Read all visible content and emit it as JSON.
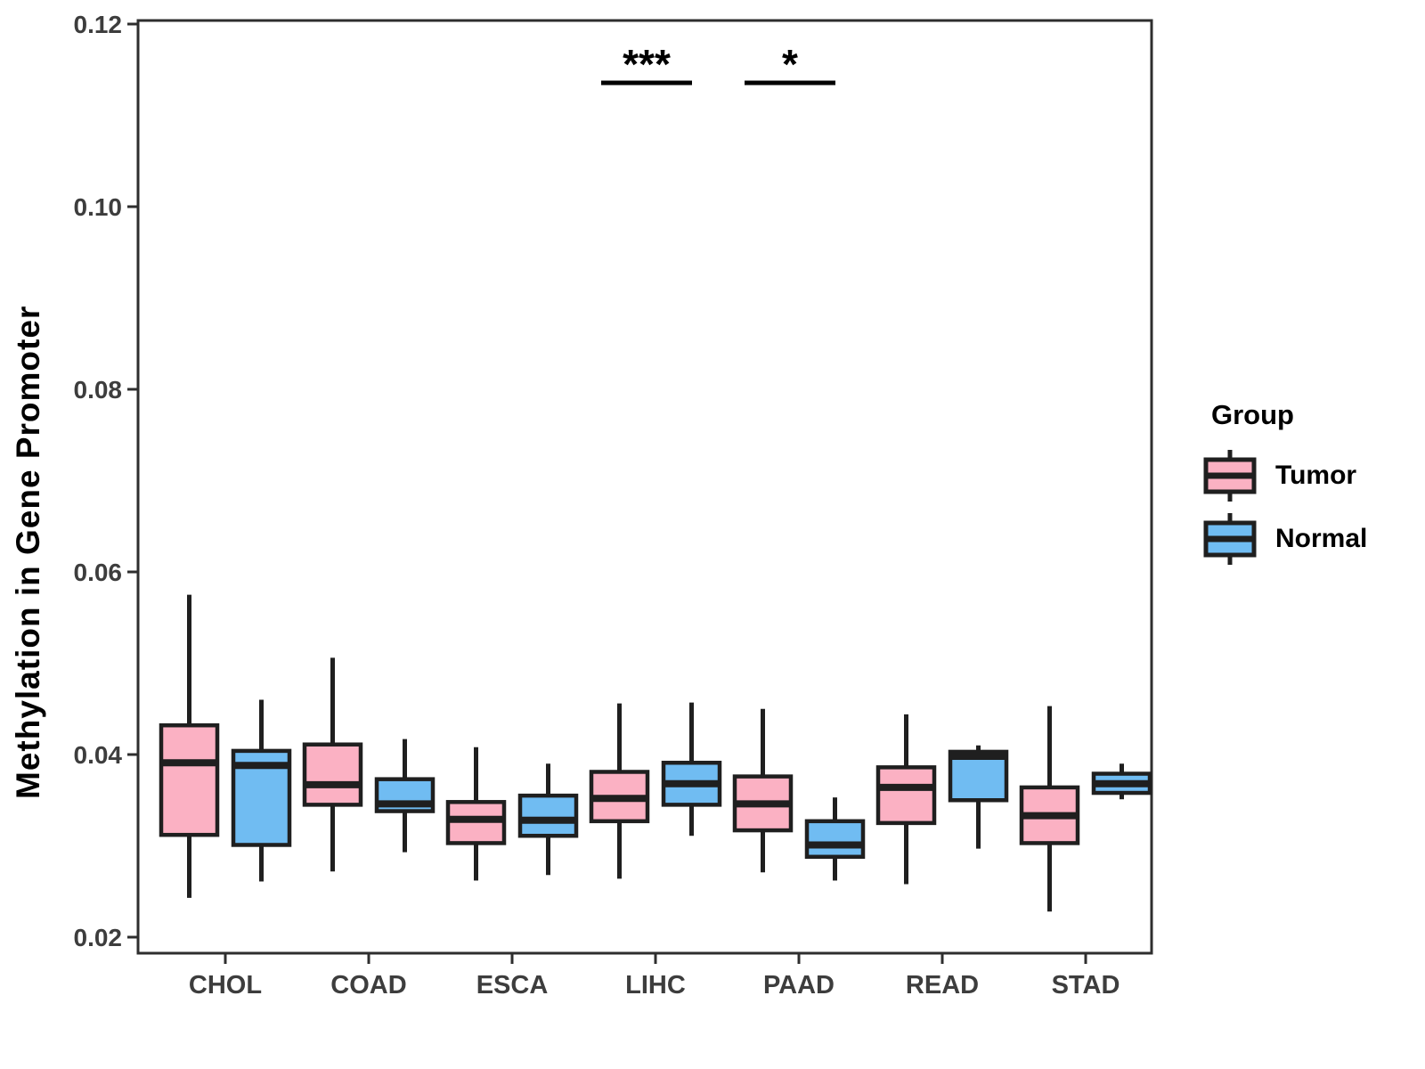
{
  "figure": {
    "background": "#FFFFFF"
  },
  "legend": {
    "title": "Group",
    "items": [
      {
        "label": "Tumor",
        "color": "#FBB1C3"
      },
      {
        "label": "Normal",
        "color": "#70BCF2"
      }
    ]
  },
  "chart_data": {
    "type": "boxplot",
    "title": "",
    "xlabel": "",
    "ylabel": "Methylation in Gene Promoter",
    "categories": [
      "CHOL",
      "COAD",
      "ESCA",
      "LIHC",
      "PAAD",
      "READ",
      "STAD"
    ],
    "groups": [
      "Tumor",
      "Normal"
    ],
    "colors": {
      "Tumor": "#FBB1C3",
      "Normal": "#70BCF2"
    },
    "stroke_color": "#1F1F1F",
    "axis_text_color": "#3D3D3D",
    "ylim": [
      0.02,
      0.12
    ],
    "yticks": [
      0.02,
      0.04,
      0.06,
      0.08,
      0.1,
      0.12
    ],
    "ytick_labels": [
      "0.02",
      "0.04",
      "0.06",
      "0.08",
      "0.10",
      "0.12"
    ],
    "grid": false,
    "legend_position": "right",
    "series": [
      {
        "name": "Tumor",
        "boxes": [
          {
            "category": "CHOL",
            "whisker_low": 0.0243,
            "q1": 0.0312,
            "median": 0.0391,
            "q3": 0.0432,
            "whisker_high": 0.0575
          },
          {
            "category": "COAD",
            "whisker_low": 0.0272,
            "q1": 0.0345,
            "median": 0.0367,
            "q3": 0.0411,
            "whisker_high": 0.0506
          },
          {
            "category": "ESCA",
            "whisker_low": 0.0262,
            "q1": 0.0303,
            "median": 0.0329,
            "q3": 0.0348,
            "whisker_high": 0.0408
          },
          {
            "category": "LIHC",
            "whisker_low": 0.0264,
            "q1": 0.0327,
            "median": 0.0352,
            "q3": 0.0381,
            "whisker_high": 0.0456
          },
          {
            "category": "PAAD",
            "whisker_low": 0.0271,
            "q1": 0.0317,
            "median": 0.0346,
            "q3": 0.0376,
            "whisker_high": 0.045
          },
          {
            "category": "READ",
            "whisker_low": 0.0258,
            "q1": 0.0325,
            "median": 0.0364,
            "q3": 0.0386,
            "whisker_high": 0.0444
          },
          {
            "category": "STAD",
            "whisker_low": 0.0228,
            "q1": 0.0303,
            "median": 0.0333,
            "q3": 0.0364,
            "whisker_high": 0.0453
          }
        ]
      },
      {
        "name": "Normal",
        "boxes": [
          {
            "category": "CHOL",
            "whisker_low": 0.0261,
            "q1": 0.0301,
            "median": 0.0388,
            "q3": 0.0404,
            "whisker_high": 0.046
          },
          {
            "category": "COAD",
            "whisker_low": 0.0293,
            "q1": 0.0338,
            "median": 0.0346,
            "q3": 0.0373,
            "whisker_high": 0.0417
          },
          {
            "category": "ESCA",
            "whisker_low": 0.0268,
            "q1": 0.0311,
            "median": 0.0328,
            "q3": 0.0355,
            "whisker_high": 0.039
          },
          {
            "category": "LIHC",
            "whisker_low": 0.0311,
            "q1": 0.0345,
            "median": 0.0368,
            "q3": 0.0391,
            "whisker_high": 0.0457
          },
          {
            "category": "PAAD",
            "whisker_low": 0.0262,
            "q1": 0.0288,
            "median": 0.0301,
            "q3": 0.0327,
            "whisker_high": 0.0353
          },
          {
            "category": "READ",
            "whisker_low": 0.0297,
            "q1": 0.035,
            "median": 0.0398,
            "q3": 0.0403,
            "whisker_high": 0.041
          },
          {
            "category": "STAD",
            "whisker_low": 0.0351,
            "q1": 0.0358,
            "median": 0.0368,
            "q3": 0.0379,
            "whisker_high": 0.039
          }
        ]
      }
    ],
    "annotations": [
      {
        "category": "LIHC",
        "label": "***"
      },
      {
        "category": "PAAD",
        "label": "*"
      }
    ]
  }
}
